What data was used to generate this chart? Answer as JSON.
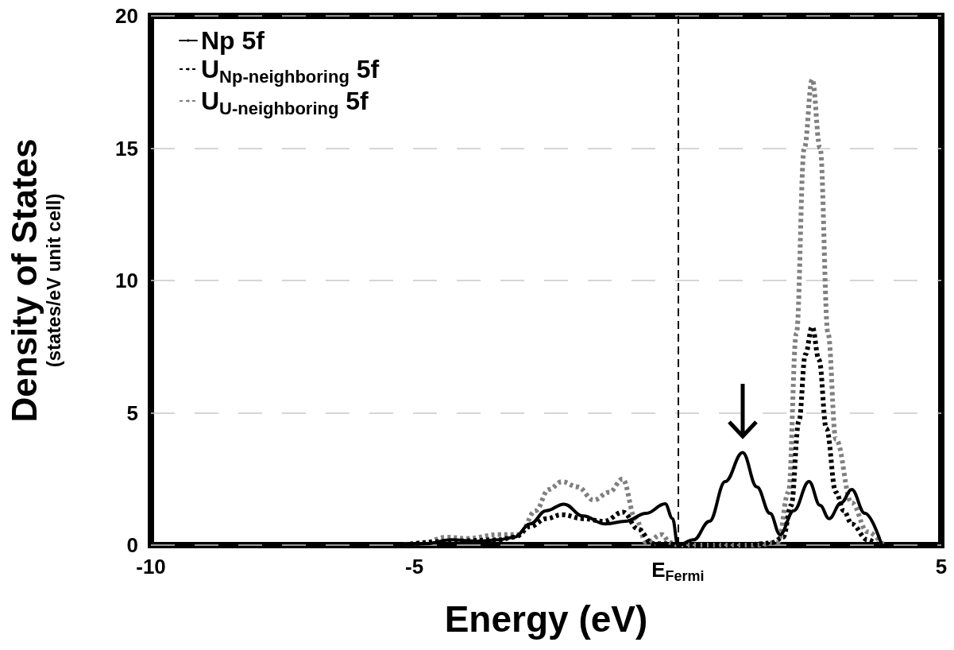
{
  "chart_data": {
    "type": "line",
    "xlabel": "Energy (eV)",
    "ylabel": "Density of States (states/eV unit cell)",
    "xlim": [
      -10,
      5
    ],
    "xticks": [
      -10,
      -5,
      {
        "value": 0,
        "label": "E$_{Fermi}$"
      },
      5
    ],
    "ylim": [
      0,
      20
    ],
    "yticks": [
      0,
      5,
      10,
      15,
      20
    ],
    "grid": "y",
    "legend": "top left",
    "marker": "none",
    "ref_lines": [
      {
        "axis": "x",
        "value": 0,
        "color": "#000000",
        "line_style": "dashed"
      }
    ],
    "series": [
      {
        "name": "Np 5f",
        "color": "#000000",
        "line_style": "solid",
        "x": [
          -5.2,
          -4.8,
          -4.3,
          -3.8,
          -3.4,
          -3.1,
          -2.8,
          -2.5,
          -2.16,
          -1.8,
          -1.38,
          -1.0,
          -0.6,
          -0.24,
          -0.1,
          0,
          0.3,
          0.6,
          0.9,
          1.23,
          1.5,
          1.75,
          1.94,
          2.2,
          2.49,
          2.7,
          2.87,
          3.1,
          3.3,
          3.55,
          3.87
        ],
        "values": [
          0,
          0.05,
          0.2,
          0.15,
          0.2,
          0.3,
          0.8,
          1.3,
          1.55,
          1.1,
          0.8,
          0.9,
          1.2,
          1.56,
          1.0,
          0,
          0.2,
          0.9,
          2.4,
          3.5,
          2.2,
          1.2,
          0.4,
          1.3,
          2.4,
          1.5,
          1.0,
          1.6,
          2.1,
          1.2,
          0
        ]
      },
      {
        "name": "U$_{Np-neighboring}$ 5f",
        "color": "#000000",
        "line_style": "dotted",
        "x": [
          -5.2,
          -4.3,
          -3.4,
          -3.1,
          -2.8,
          -2.5,
          -2.2,
          -1.8,
          -1.4,
          -1.04,
          -0.75,
          -0.48,
          -0.2,
          0,
          1.2,
          1.6,
          1.8,
          2.0,
          2.15,
          2.3,
          2.42,
          2.55,
          2.68,
          2.82,
          3.0,
          3.15,
          3.3,
          3.6,
          3.8
        ],
        "values": [
          0,
          0.15,
          0.2,
          0.3,
          0.7,
          1.0,
          1.15,
          1.0,
          0.9,
          1.25,
          0.6,
          0.05,
          0.05,
          0,
          0,
          0.05,
          0.1,
          0.3,
          1.5,
          4.7,
          7.2,
          8.25,
          7.0,
          4.4,
          2.0,
          1.3,
          0.8,
          0.2,
          0
        ]
      },
      {
        "name": "U$_{U-neighboring}$ 5f",
        "color": "#808080",
        "line_style": "dotted",
        "x": [
          -5.2,
          -4.8,
          -4.4,
          -4.0,
          -3.4,
          -3.0,
          -2.7,
          -2.45,
          -2.2,
          -1.9,
          -1.6,
          -1.3,
          -1.05,
          -0.8,
          -0.6,
          -0.3,
          -0.15,
          0,
          1.5,
          1.9,
          2.1,
          2.25,
          2.4,
          2.55,
          2.7,
          2.85,
          3.0,
          3.3,
          3.6,
          3.9
        ],
        "values": [
          0,
          0.1,
          0.3,
          0.25,
          0.4,
          0.4,
          1.3,
          2.1,
          2.4,
          2.2,
          1.7,
          2.0,
          2.5,
          1.0,
          0.1,
          0.4,
          0.1,
          0,
          0,
          0.1,
          2.0,
          8.0,
          15.0,
          17.6,
          15.0,
          8.0,
          4.0,
          1.6,
          0.5,
          0
        ]
      }
    ]
  }
}
